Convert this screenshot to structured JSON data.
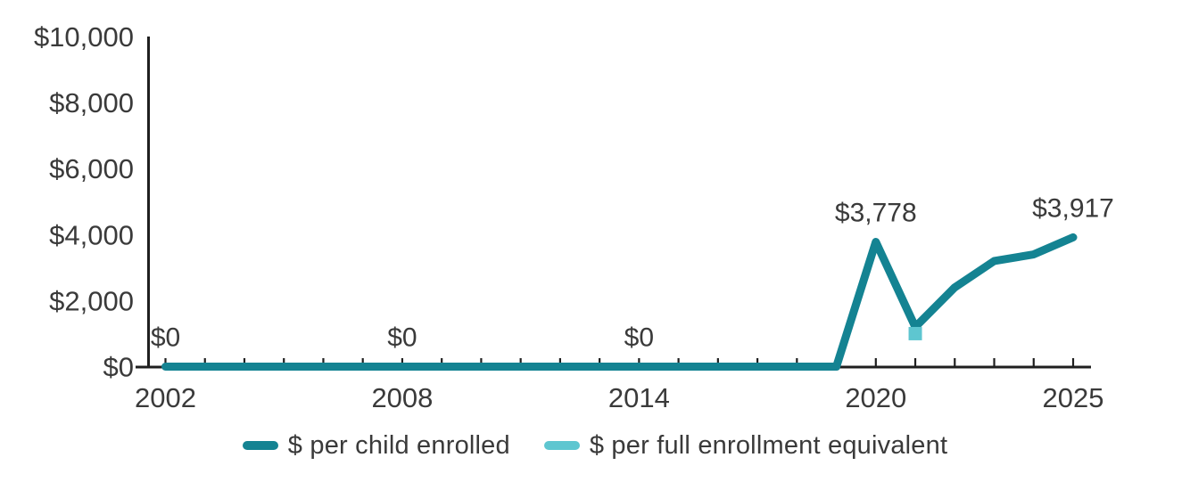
{
  "chart_data": {
    "type": "line",
    "title": "",
    "xlabel": "",
    "ylabel": "",
    "grid": false,
    "legend_position": "bottom",
    "xlim": [
      2002,
      2025
    ],
    "ylim": [
      0,
      10000
    ],
    "x": [
      2002,
      2003,
      2004,
      2005,
      2006,
      2007,
      2008,
      2009,
      2010,
      2011,
      2012,
      2013,
      2014,
      2015,
      2016,
      2017,
      2018,
      2019,
      2020,
      2021,
      2022,
      2023,
      2024,
      2025
    ],
    "series": [
      {
        "name": "$ per child enrolled",
        "color": "#148392",
        "style": "line",
        "values": [
          0,
          0,
          0,
          0,
          0,
          0,
          0,
          0,
          0,
          0,
          0,
          0,
          0,
          0,
          0,
          0,
          0,
          0,
          3778,
          1200,
          2400,
          3200,
          3400,
          3917
        ]
      },
      {
        "name": "$ per full enrollment equivalent",
        "color": "#5EC6D0",
        "style": "square-marker",
        "points": [
          {
            "x": 2021,
            "y": 1000
          }
        ]
      }
    ],
    "yticks": [
      {
        "value": 0,
        "label": "$0"
      },
      {
        "value": 2000,
        "label": "$2,000"
      },
      {
        "value": 4000,
        "label": "$4,000"
      },
      {
        "value": 6000,
        "label": "$6,000"
      },
      {
        "value": 8000,
        "label": "$8,000"
      },
      {
        "value": 10000,
        "label": "$10,000"
      }
    ],
    "xticks_labeled": [
      {
        "value": 2002,
        "label": "2002"
      },
      {
        "value": 2008,
        "label": "2008"
      },
      {
        "value": 2014,
        "label": "2014"
      },
      {
        "value": 2020,
        "label": "2020"
      },
      {
        "value": 2025,
        "label": "2025"
      }
    ],
    "data_labels": [
      {
        "x": 2002,
        "value": 0,
        "text": "$0"
      },
      {
        "x": 2008,
        "value": 0,
        "text": "$0"
      },
      {
        "x": 2014,
        "value": 0,
        "text": "$0"
      },
      {
        "x": 2020,
        "value": 3778,
        "text": "$3,778"
      },
      {
        "x": 2025,
        "value": 3917,
        "text": "$3,917"
      }
    ]
  },
  "colors": {
    "axis": "#1f1f1f",
    "text": "#3a3a3a",
    "background": "#ffffff"
  }
}
